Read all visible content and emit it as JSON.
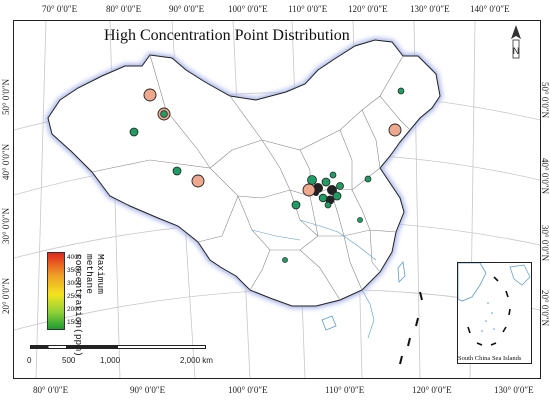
{
  "title": "High Concentration Point Distribution",
  "top_longitude_labels": [
    "70° 0′0″E",
    "80° 0′0″E",
    "90° 0′0″E",
    "100° 0′0″E",
    "110° 0′0″E",
    "120° 0′0″E",
    "130° 0′0″E",
    "140° 0′0″E"
  ],
  "bottom_longitude_labels": [
    "80° 0′0″E",
    "90° 0′0″E",
    "100° 0′0″E",
    "110° 0′0″E",
    "120° 0′0″E",
    "130° 0′0″E"
  ],
  "left_latitude_labels": [
    "50° 0′0″N",
    "40° 0′0″N",
    "30° 0′0″N",
    "20° 0′0″N"
  ],
  "right_latitude_labels": [
    "50° 0′0″N",
    "40° 0′0″N",
    "30° 0′0″N",
    "20° 0′0″N"
  ],
  "north_arrow_label": "N",
  "legend": {
    "title": "Maximum methane concentration(ppm)",
    "ticks": [
      "4000",
      "3500",
      "3000",
      "2500",
      "2000",
      "1500"
    ],
    "color_high": "#e0261d",
    "color_low": "#1a9c2f"
  },
  "scale_bar": {
    "labels": [
      "0",
      "500",
      "1,000",
      "2,000 km"
    ]
  },
  "inset_label": "South China Sea Islands",
  "colors": {
    "land_fill": "#ffffff",
    "border_glow": "#aab6ea",
    "salmon_point": "#eea88d",
    "green_point": "#1f9c63",
    "graticule": "#c8c8c8"
  },
  "points": [
    {
      "color": "salmon",
      "large": true
    },
    {
      "color": "green_ring",
      "large": true
    },
    {
      "color": "green",
      "large": false
    },
    {
      "color": "green",
      "large": false
    },
    {
      "color": "salmon",
      "large": true
    },
    {
      "color": "green",
      "large": false
    },
    {
      "color": "salmon",
      "large": true
    },
    {
      "color": "green",
      "large": false
    },
    {
      "color": "green",
      "large": false
    },
    {
      "color": "green",
      "large": false
    },
    {
      "color": "green",
      "large": false
    },
    {
      "color": "green",
      "large": false
    }
  ]
}
